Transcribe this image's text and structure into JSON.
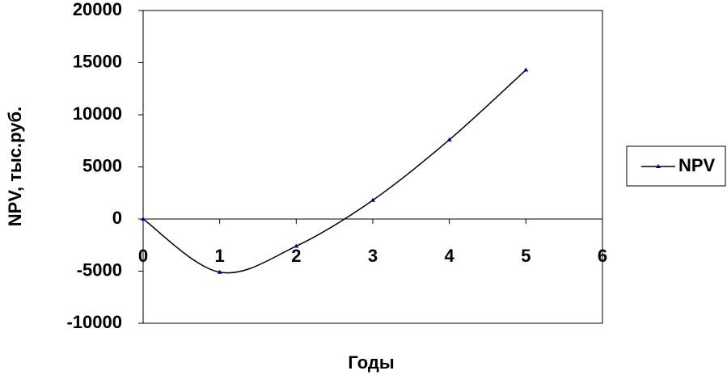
{
  "chart_data": {
    "type": "line",
    "x": [
      0,
      1,
      2,
      3,
      4,
      5
    ],
    "series": [
      {
        "name": "NPV",
        "color": "#000000",
        "marker_color": "#000080",
        "values": [
          0,
          -5100,
          -2600,
          1800,
          7600,
          14300
        ]
      }
    ],
    "xlim": [
      0,
      6
    ],
    "xticks": [
      0,
      1,
      2,
      3,
      4,
      5,
      6
    ],
    "ylim": [
      -10000,
      20000
    ],
    "yticks": [
      -10000,
      -5000,
      0,
      5000,
      10000,
      15000,
      20000
    ],
    "xlabel": "Годы",
    "ylabel": "NPV, тыс.руб.",
    "smooth": true,
    "legend": "right"
  }
}
